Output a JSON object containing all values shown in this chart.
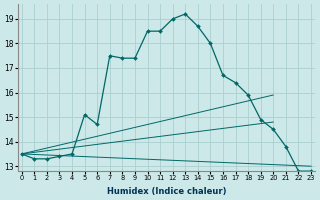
{
  "xlabel": "Humidex (Indice chaleur)",
  "background_color": "#cce8e8",
  "grid_color": "#aad0d0",
  "line_color": "#006868",
  "line1_x": [
    0,
    1,
    2,
    3,
    4,
    5,
    6,
    7,
    8,
    9,
    10,
    11,
    12,
    13,
    14,
    15,
    16,
    17,
    18,
    19,
    20,
    21,
    22,
    23
  ],
  "line1_y": [
    13.5,
    13.3,
    13.3,
    13.4,
    13.5,
    15.1,
    14.7,
    17.5,
    17.4,
    17.4,
    18.5,
    18.5,
    19.0,
    19.2,
    18.7,
    18.0,
    16.7,
    16.4,
    15.9,
    14.9,
    14.5,
    13.8,
    12.8,
    12.8
  ],
  "line2_x": [
    0,
    20
  ],
  "line2_y": [
    13.5,
    15.9
  ],
  "line3_x": [
    0,
    20
  ],
  "line3_y": [
    13.5,
    14.8
  ],
  "line4_x": [
    0,
    23
  ],
  "line4_y": [
    13.5,
    13.0
  ],
  "xlim": [
    -0.3,
    23.3
  ],
  "ylim": [
    12.8,
    19.6
  ],
  "yticks": [
    13,
    14,
    15,
    16,
    17,
    18,
    19
  ],
  "xticks": [
    0,
    1,
    2,
    3,
    4,
    5,
    6,
    7,
    8,
    9,
    10,
    11,
    12,
    13,
    14,
    15,
    16,
    17,
    18,
    19,
    20,
    21,
    22,
    23
  ]
}
